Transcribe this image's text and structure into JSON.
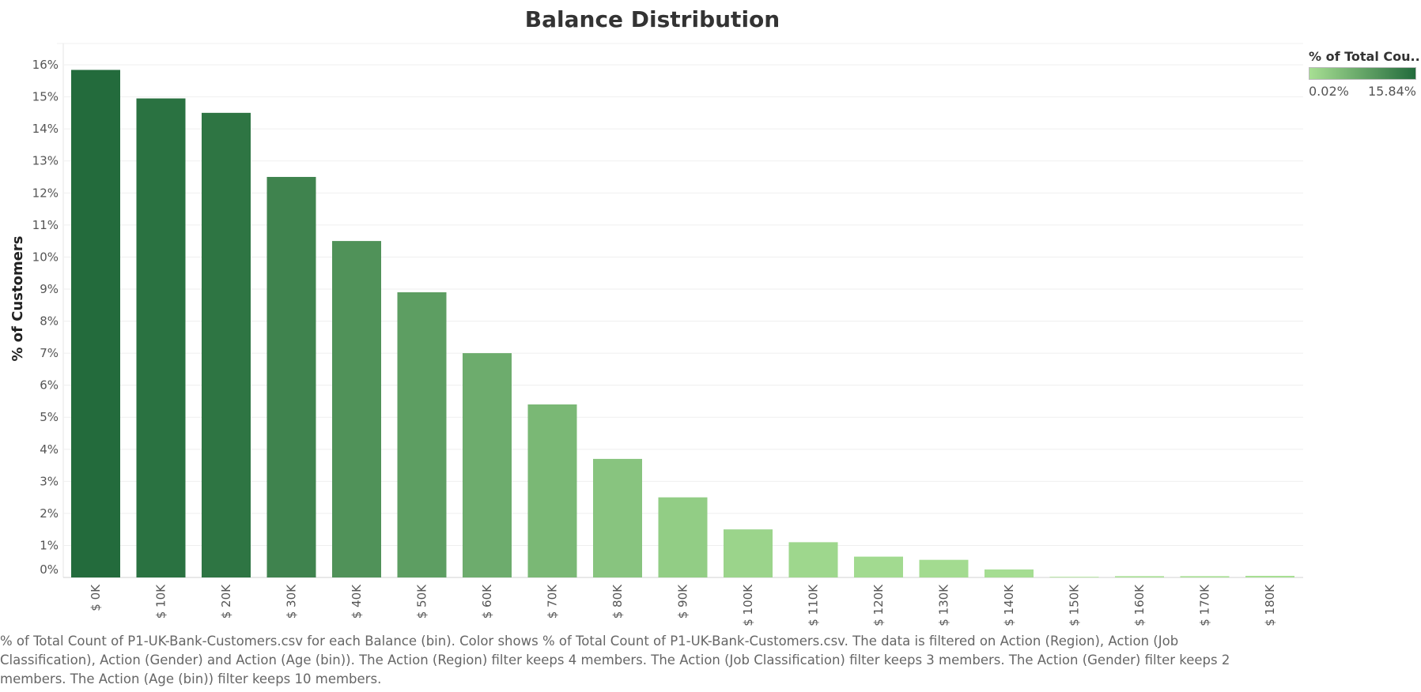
{
  "chart_data": {
    "type": "bar",
    "title": "Balance Distribution",
    "xlabel": "",
    "ylabel": "% of Customers",
    "ylim": [
      0,
      16.3
    ],
    "grid": true,
    "categories": [
      "$ 0K",
      "$ 10K",
      "$ 20K",
      "$ 30K",
      "$ 40K",
      "$ 50K",
      "$ 60K",
      "$ 70K",
      "$ 80K",
      "$ 90K",
      "$ 100K",
      "$ 110K",
      "$ 120K",
      "$ 130K",
      "$ 140K",
      "$ 150K",
      "$ 160K",
      "$ 170K",
      "$ 180K"
    ],
    "values": [
      15.84,
      14.95,
      14.5,
      12.5,
      10.5,
      8.9,
      7.0,
      5.4,
      3.7,
      2.5,
      1.5,
      1.1,
      0.65,
      0.55,
      0.25,
      0.02,
      0.04,
      0.04,
      0.05
    ],
    "yticks": [
      "0%",
      "1%",
      "2%",
      "3%",
      "4%",
      "5%",
      "6%",
      "7%",
      "8%",
      "9%",
      "10%",
      "11%",
      "12%",
      "13%",
      "14%",
      "15%",
      "16%"
    ],
    "color_min": "#a7df93",
    "color_max": "#236b3c",
    "legend": {
      "title": "% of Total Cou..",
      "min_label": "0.02%",
      "max_label": "15.84%",
      "placement": "top-right"
    }
  },
  "footnote": "% of Total Count of P1-UK-Bank-Customers.csv for each Balance (bin).  Color shows % of Total Count of P1-UK-Bank-Customers.csv. The data is filtered on Action (Region), Action (Job Classification), Action (Gender) and Action (Age (bin)). The Action (Region) filter keeps 4 members. The Action (Job Classification) filter keeps 3 members. The Action (Gender) filter keeps 2 members. The Action (Age (bin)) filter keeps 10 members."
}
